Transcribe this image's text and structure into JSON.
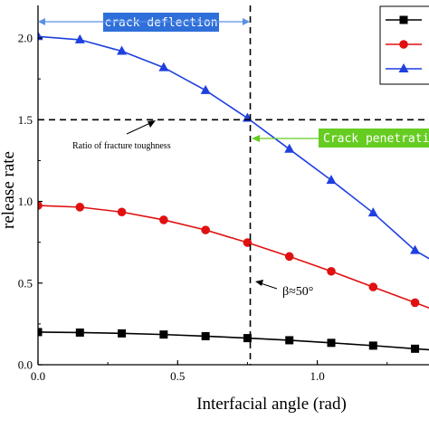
{
  "chart_data": {
    "type": "line",
    "xlabel": "Interfacial angle (rad)",
    "ylabel": "release rate",
    "xlim": [
      0,
      1.4
    ],
    "ylim": [
      0,
      2.2
    ],
    "x_ticks": [
      0.0,
      0.5,
      1.0
    ],
    "x_tick_labels": [
      "0.0",
      "0.5",
      "1.0"
    ],
    "y_ticks": [
      0.0,
      0.5,
      1.0,
      1.5,
      2.0
    ],
    "y_tick_labels": [
      "0.0",
      "0.5",
      "1.0",
      "1.5",
      "2.0"
    ],
    "grid": false,
    "legend_position": "top-right",
    "series": [
      {
        "name": "",
        "color": "#000000",
        "marker": "square",
        "x": [
          0.0,
          0.15,
          0.3,
          0.45,
          0.6,
          0.75,
          0.9,
          1.05,
          1.2,
          1.35,
          1.45
        ],
        "values": [
          0.2,
          0.197,
          0.192,
          0.185,
          0.175,
          0.163,
          0.15,
          0.134,
          0.117,
          0.098,
          0.085
        ]
      },
      {
        "name": "",
        "color": "#e01010",
        "marker": "circle",
        "x": [
          0.0,
          0.15,
          0.3,
          0.45,
          0.6,
          0.75,
          0.9,
          1.05,
          1.2,
          1.35,
          1.45
        ],
        "values": [
          0.975,
          0.965,
          0.935,
          0.887,
          0.825,
          0.748,
          0.663,
          0.572,
          0.476,
          0.38,
          0.316
        ]
      },
      {
        "name": "",
        "color": "#1f3fe0",
        "marker": "triangle",
        "x": [
          0.0,
          0.15,
          0.3,
          0.45,
          0.6,
          0.75,
          0.9,
          1.05,
          1.2,
          1.35,
          1.45
        ],
        "values": [
          2.01,
          1.99,
          1.92,
          1.82,
          1.68,
          1.51,
          1.32,
          1.13,
          0.93,
          0.7,
          0.6
        ]
      }
    ],
    "reference_lines": {
      "horizontal_y": 1.5,
      "vertical_x": 0.76
    },
    "annotations": {
      "deflection": "crack deflection",
      "penetration": "Crack penetration",
      "toughness": "Ratio of fracture toughness",
      "beta": "β≈50°"
    },
    "colors": {
      "deflection_box": "#2f6fd9",
      "penetration_box": "#66cc22"
    }
  }
}
